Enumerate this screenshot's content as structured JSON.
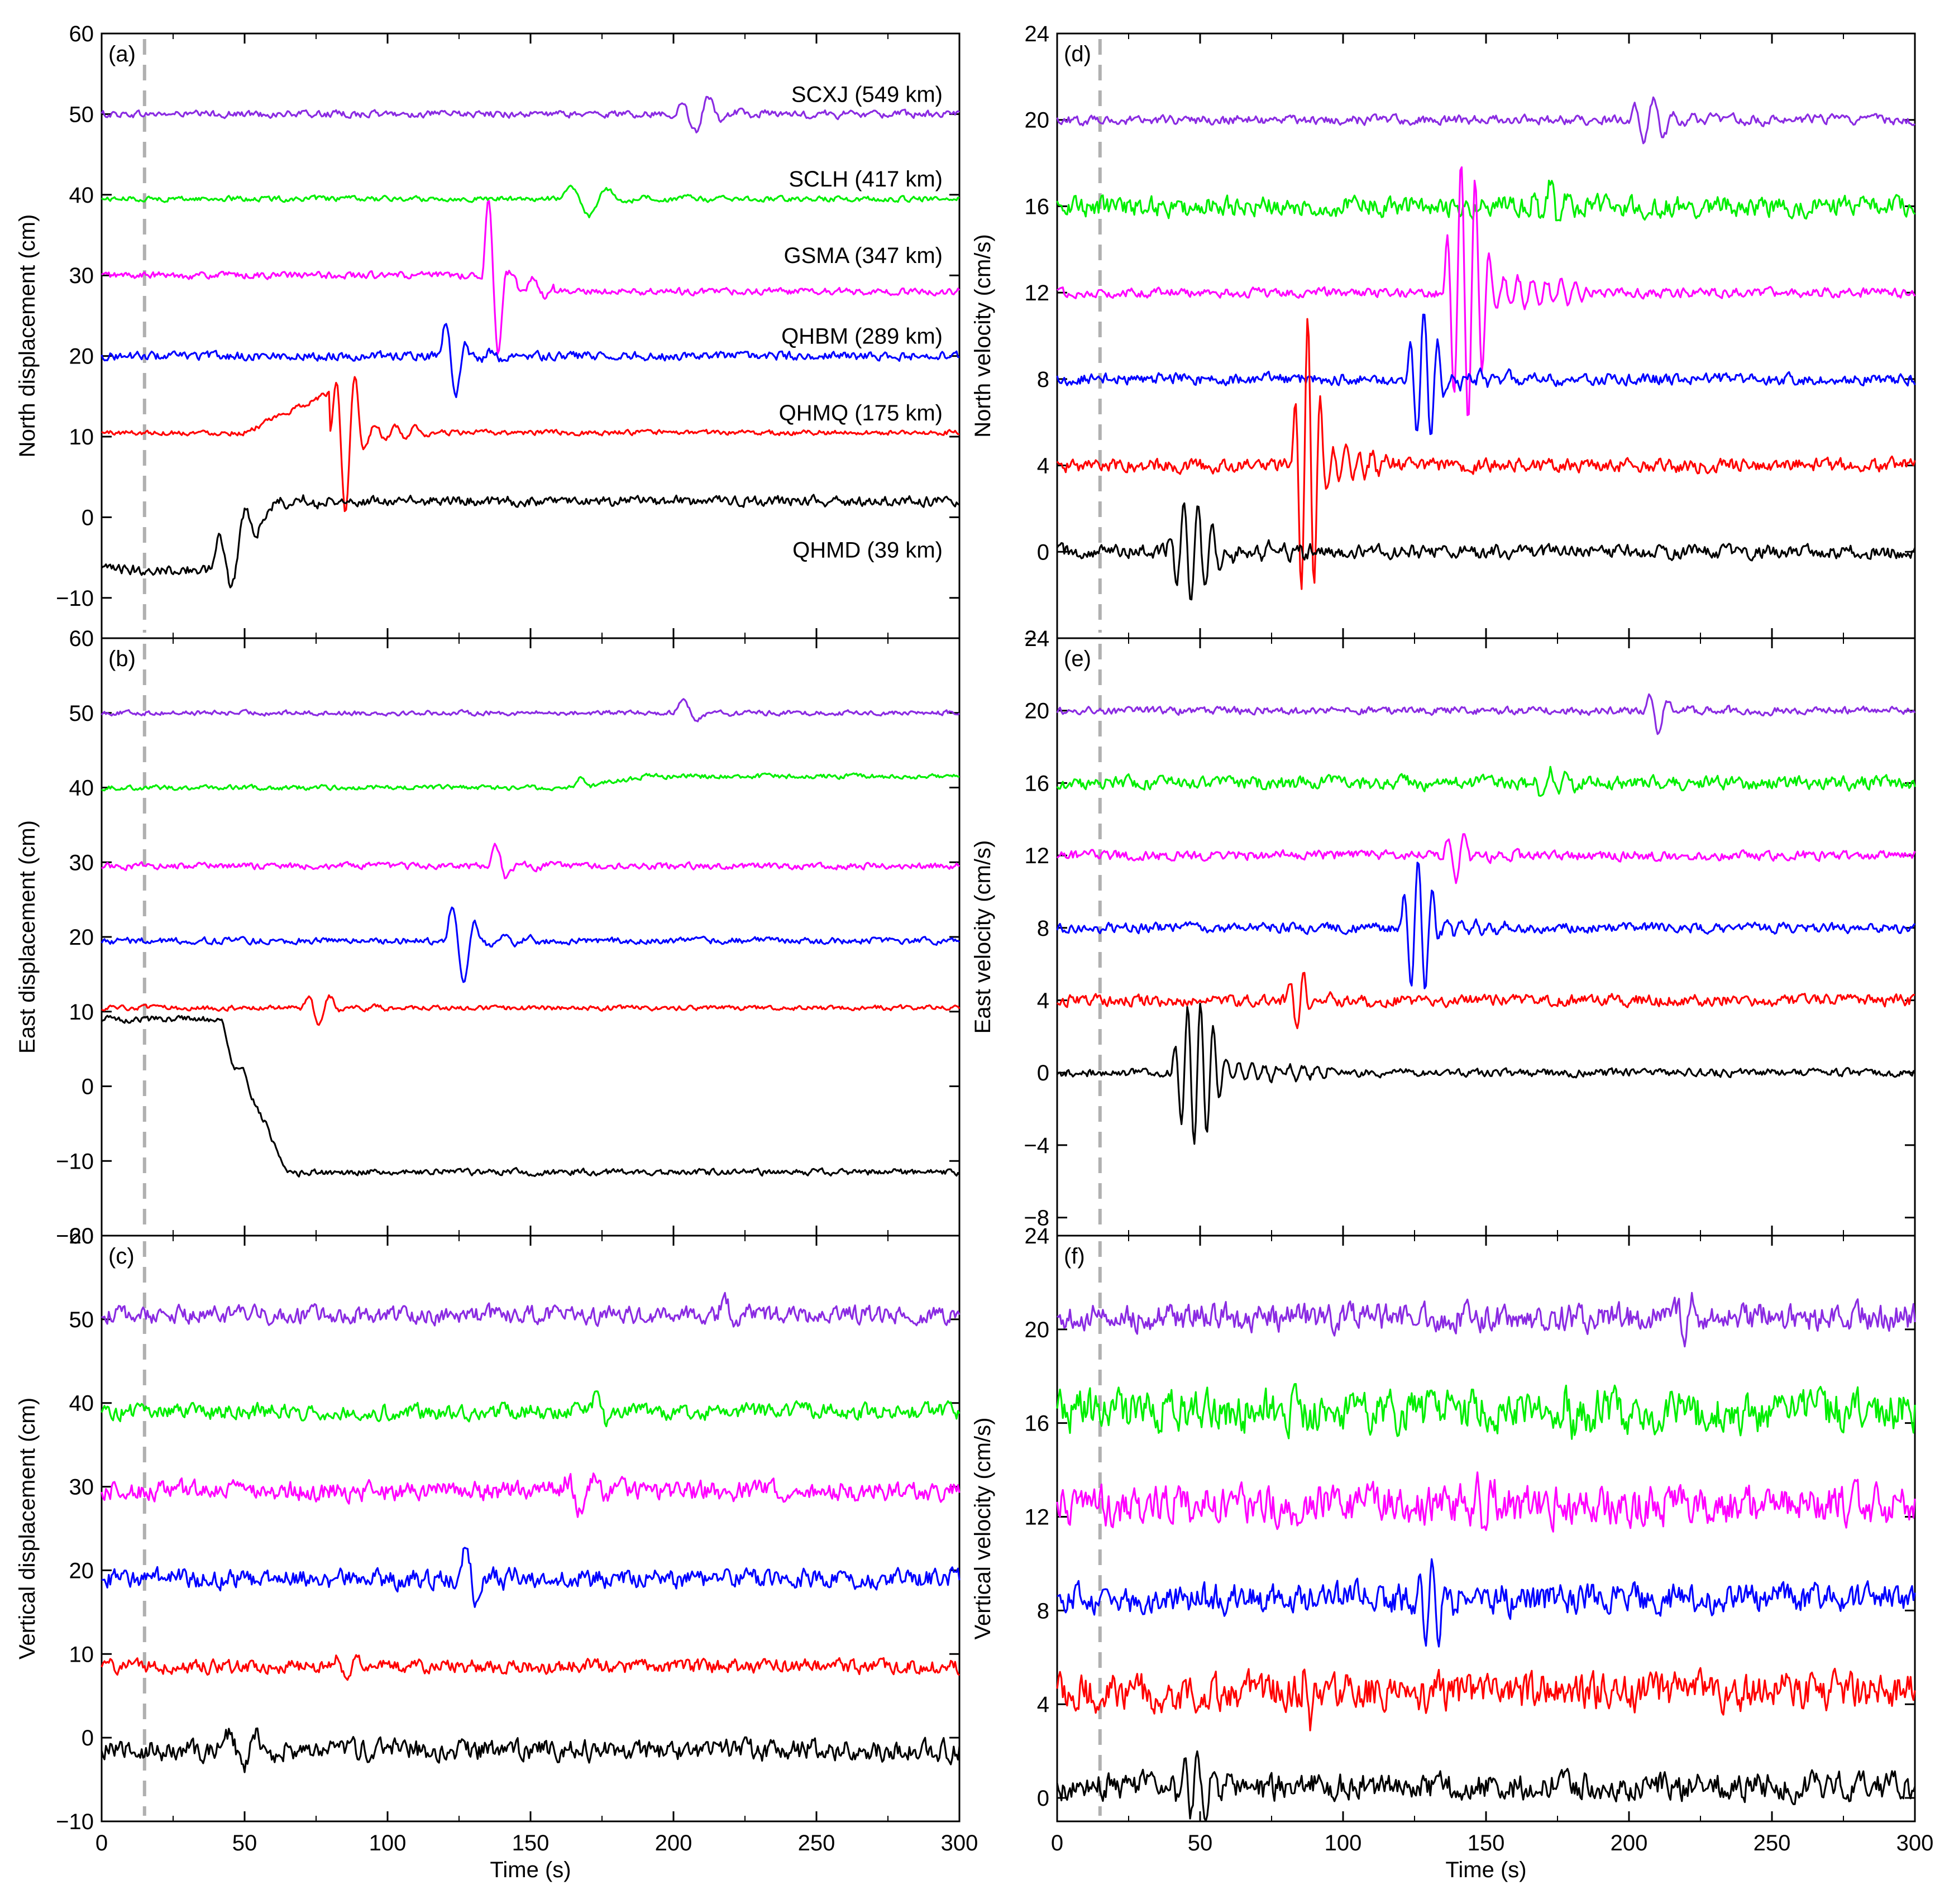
{
  "chart_data": [
    {
      "type": "line",
      "panel_label": "(a)",
      "ylabel": "North displacement (cm)",
      "xlabel": "",
      "xlim": [
        0,
        300
      ],
      "ylim": [
        -15,
        60
      ],
      "xticks": [
        0,
        50,
        100,
        150,
        200,
        250,
        300
      ],
      "yticks": [
        -10,
        0,
        10,
        20,
        30,
        40,
        50,
        60
      ],
      "vline_x": 15,
      "series": [
        {
          "name": "SCXJ (549 km)",
          "color": "#8a2be2",
          "baseline": 50,
          "noise": 0.4,
          "wave_start": 200,
          "wave_amp": 2.5,
          "wave_period": 10,
          "wave_len": 60
        },
        {
          "name": "SCLH (417 km)",
          "color": "#00ee00",
          "baseline": 39.5,
          "noise": 0.3,
          "wave_start": 160,
          "wave_amp": 2.5,
          "wave_period": 14,
          "wave_len": 60
        },
        {
          "name": "GSMA (347 km)",
          "color": "#ff00ff",
          "baseline": 30,
          "noise": 0.4,
          "wave_start": 133,
          "wave_amp": 13,
          "wave_period": 8,
          "wave_len": 25,
          "step_after": -2
        },
        {
          "name": "QHBM (289 km)",
          "color": "#0000ff",
          "baseline": 20,
          "noise": 0.5,
          "wave_start": 118,
          "wave_amp": 6,
          "wave_period": 8,
          "wave_len": 30
        },
        {
          "name": "QHMQ (175 km)",
          "color": "#ff0000",
          "baseline": 10.5,
          "noise": 0.3,
          "wave_start": 80,
          "wave_amp": 11,
          "wave_period": 7,
          "wave_len": 35,
          "ramp": 5
        },
        {
          "name": "QHMD (39 km)",
          "color": "#000000",
          "baseline": -6.5,
          "noise": 0.6,
          "wave_start": 38,
          "wave_amp": 5,
          "wave_period": 10,
          "wave_len": 50,
          "step_after": 8.5
        }
      ]
    },
    {
      "type": "line",
      "panel_label": "(b)",
      "ylabel": "East displacement (cm)",
      "xlabel": "",
      "xlim": [
        0,
        300
      ],
      "ylim": [
        -20,
        60
      ],
      "xticks": [
        0,
        50,
        100,
        150,
        200,
        250,
        300
      ],
      "yticks": [
        -20,
        -10,
        0,
        10,
        20,
        30,
        40,
        50,
        60
      ],
      "vline_x": 15,
      "series": [
        {
          "color": "#8a2be2",
          "baseline": 50,
          "noise": 0.3,
          "wave_start": 200,
          "wave_amp": 2.5,
          "wave_period": 12,
          "wave_len": 30
        },
        {
          "color": "#00ee00",
          "baseline": 40,
          "noise": 0.3,
          "wave_start": 165,
          "wave_amp": 1.5,
          "wave_period": 10,
          "wave_len": 20,
          "step_after": 1.5
        },
        {
          "color": "#ff00ff",
          "baseline": 29.5,
          "noise": 0.4,
          "wave_start": 135,
          "wave_amp": 3.5,
          "wave_period": 10,
          "wave_len": 25
        },
        {
          "color": "#0000ff",
          "baseline": 19.5,
          "noise": 0.4,
          "wave_start": 120,
          "wave_amp": 7,
          "wave_period": 9,
          "wave_len": 35
        },
        {
          "color": "#ff0000",
          "baseline": 10.5,
          "noise": 0.3,
          "wave_start": 70,
          "wave_amp": 2.5,
          "wave_period": 8,
          "wave_len": 40
        },
        {
          "color": "#000000",
          "baseline": 9,
          "noise": 0.4,
          "wave_start": 40,
          "wave_amp": 2,
          "wave_period": 8,
          "wave_len": 35,
          "step_after": -20.5
        }
      ]
    },
    {
      "type": "line",
      "panel_label": "(c)",
      "ylabel": "Vertical displacement (cm)",
      "xlabel": "Time (s)",
      "xlim": [
        0,
        300
      ],
      "ylim": [
        -10,
        60
      ],
      "xticks": [
        0,
        50,
        100,
        150,
        200,
        250,
        300
      ],
      "yticks": [
        -10,
        0,
        10,
        20,
        30,
        40,
        50,
        60
      ],
      "vline_x": 15,
      "series": [
        {
          "color": "#8a2be2",
          "baseline": 50.5,
          "noise": 1.0,
          "wave_start": 215,
          "wave_amp": 2.5,
          "wave_period": 10,
          "wave_len": 30
        },
        {
          "color": "#00ee00",
          "baseline": 39,
          "noise": 0.9,
          "wave_start": 170,
          "wave_amp": 2.5,
          "wave_period": 10,
          "wave_len": 30
        },
        {
          "color": "#ff00ff",
          "baseline": 29.5,
          "noise": 1.1,
          "wave_start": 160,
          "wave_amp": 2.5,
          "wave_period": 10,
          "wave_len": 50
        },
        {
          "color": "#0000ff",
          "baseline": 19,
          "noise": 1.1,
          "wave_start": 125,
          "wave_amp": 5,
          "wave_period": 9,
          "wave_len": 25
        },
        {
          "color": "#ff0000",
          "baseline": 8.5,
          "noise": 0.8,
          "wave_start": 80,
          "wave_amp": 2.5,
          "wave_period": 8,
          "wave_len": 30
        },
        {
          "color": "#000000",
          "baseline": -1.5,
          "noise": 1.2,
          "wave_start": 42,
          "wave_amp": 3,
          "wave_period": 10,
          "wave_len": 45
        }
      ]
    },
    {
      "type": "line",
      "panel_label": "(d)",
      "ylabel": "North velocity (cm/s)",
      "xlabel": "",
      "xlim": [
        0,
        300
      ],
      "ylim": [
        -4,
        24
      ],
      "xticks": [
        0,
        50,
        100,
        150,
        200,
        250,
        300
      ],
      "yticks": [
        -4,
        0,
        4,
        8,
        12,
        16,
        20,
        24
      ],
      "vline_x": 15,
      "series": [
        {
          "color": "#8a2be2",
          "baseline": 20,
          "noise": 0.2,
          "wave_start": 200,
          "wave_amp": 1.2,
          "wave_period": 7,
          "wave_len": 50
        },
        {
          "color": "#00ee00",
          "baseline": 16,
          "noise": 0.45,
          "wave_start": 165,
          "wave_amp": 1.1,
          "wave_period": 6,
          "wave_len": 50
        },
        {
          "color": "#ff00ff",
          "baseline": 12,
          "noise": 0.2,
          "wave_start": 135,
          "wave_amp": 7,
          "wave_period": 5,
          "wave_len": 50
        },
        {
          "color": "#0000ff",
          "baseline": 8,
          "noise": 0.25,
          "wave_start": 122,
          "wave_amp": 3.5,
          "wave_period": 5,
          "wave_len": 40
        },
        {
          "color": "#ff0000",
          "baseline": 4,
          "noise": 0.3,
          "wave_start": 82,
          "wave_amp": 7.5,
          "wave_period": 4.5,
          "wave_len": 35
        },
        {
          "color": "#000000",
          "baseline": 0,
          "noise": 0.3,
          "wave_start": 38,
          "wave_amp": 2.5,
          "wave_period": 5,
          "wave_len": 60
        }
      ]
    },
    {
      "type": "line",
      "panel_label": "(e)",
      "ylabel": "East velocity (cm/s)",
      "xlabel": "",
      "xlim": [
        0,
        300
      ],
      "ylim": [
        -9,
        24
      ],
      "xticks": [
        0,
        50,
        100,
        150,
        200,
        250,
        300
      ],
      "yticks": [
        -8,
        -4,
        0,
        4,
        8,
        12,
        16,
        20,
        24
      ],
      "vline_x": 15,
      "series": [
        {
          "color": "#8a2be2",
          "baseline": 20,
          "noise": 0.2,
          "wave_start": 205,
          "wave_amp": 1.4,
          "wave_period": 7,
          "wave_len": 30
        },
        {
          "color": "#00ee00",
          "baseline": 16,
          "noise": 0.35,
          "wave_start": 165,
          "wave_amp": 0.9,
          "wave_period": 6,
          "wave_len": 50
        },
        {
          "color": "#ff00ff",
          "baseline": 12,
          "noise": 0.25,
          "wave_start": 135,
          "wave_amp": 1.8,
          "wave_period": 6,
          "wave_len": 30
        },
        {
          "color": "#0000ff",
          "baseline": 8,
          "noise": 0.25,
          "wave_start": 120,
          "wave_amp": 4.2,
          "wave_period": 5,
          "wave_len": 40
        },
        {
          "color": "#ff0000",
          "baseline": 4,
          "noise": 0.3,
          "wave_start": 80,
          "wave_amp": 1.6,
          "wave_period": 5,
          "wave_len": 30
        },
        {
          "color": "#000000",
          "baseline": 0,
          "noise": 0.2,
          "wave_start": 40,
          "wave_amp": 4.5,
          "wave_period": 4.5,
          "wave_len": 55
        }
      ]
    },
    {
      "type": "line",
      "panel_label": "(f)",
      "ylabel": "Vertical velocity (cm/s)",
      "xlabel": "Time (s)",
      "xlim": [
        0,
        300
      ],
      "ylim": [
        -1,
        24
      ],
      "xticks": [
        0,
        50,
        100,
        150,
        200,
        250,
        300
      ],
      "yticks": [
        0,
        4,
        8,
        12,
        16,
        20,
        24
      ],
      "vline_x": 15,
      "series": [
        {
          "color": "#8a2be2",
          "baseline": 20.5,
          "noise": 0.55,
          "wave_start": 215,
          "wave_amp": 0.8,
          "wave_period": 6,
          "wave_len": 40
        },
        {
          "color": "#00ee00",
          "baseline": 16.5,
          "noise": 0.85,
          "wave_start": 170,
          "wave_amp": 0.8,
          "wave_period": 6,
          "wave_len": 40
        },
        {
          "color": "#ff00ff",
          "baseline": 12.5,
          "noise": 0.8,
          "wave_start": 145,
          "wave_amp": 1.2,
          "wave_period": 6,
          "wave_len": 30
        },
        {
          "color": "#0000ff",
          "baseline": 8.5,
          "noise": 0.6,
          "wave_start": 125,
          "wave_amp": 2.3,
          "wave_period": 5,
          "wave_len": 35
        },
        {
          "color": "#ff0000",
          "baseline": 4.5,
          "noise": 0.75,
          "wave_start": 85,
          "wave_amp": 1.3,
          "wave_period": 5,
          "wave_len": 20
        },
        {
          "color": "#000000",
          "baseline": 0.5,
          "noise": 0.55,
          "wave_start": 38,
          "wave_amp": 1.5,
          "wave_period": 5,
          "wave_len": 60
        }
      ]
    }
  ]
}
